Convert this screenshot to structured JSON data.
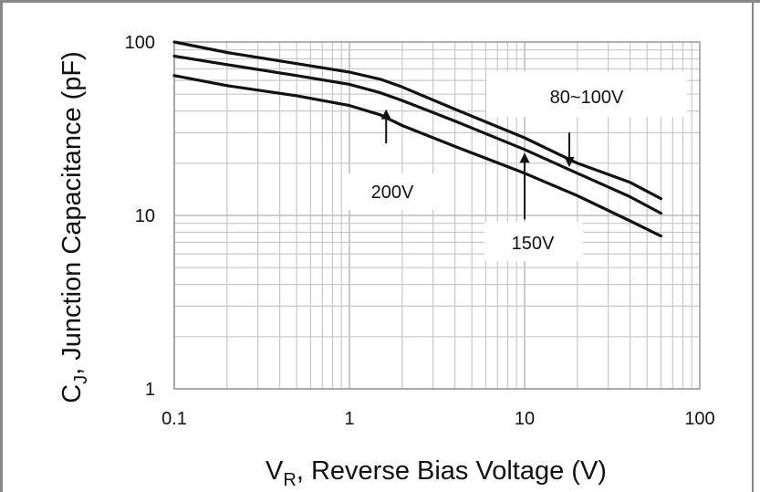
{
  "chart_data": {
    "type": "line",
    "title": "",
    "x_scale": "log",
    "y_scale": "log",
    "xlim": [
      0.1,
      100
    ],
    "ylim": [
      1,
      100
    ],
    "grid": true,
    "x_ticks": [
      {
        "value": 0.1,
        "label": "0.1"
      },
      {
        "value": 1,
        "label": "1"
      },
      {
        "value": 10,
        "label": "10"
      },
      {
        "value": 100,
        "label": "100"
      }
    ],
    "y_ticks": [
      {
        "value": 1,
        "label": "1"
      },
      {
        "value": 10,
        "label": "10"
      },
      {
        "value": 100,
        "label": "100"
      }
    ],
    "xlabel": {
      "main": "V",
      "sub": "R",
      "rest": ", Reverse Bias Voltage (V)"
    },
    "ylabel": {
      "main": "C",
      "sub": "J",
      "rest": ", Junction Capacitance (pF)"
    },
    "series": [
      {
        "name": "80~100V",
        "x": [
          0.1,
          0.2,
          0.5,
          1,
          1.5,
          2,
          4,
          10,
          20,
          40,
          60
        ],
        "y": [
          100,
          87,
          75,
          67,
          61,
          55,
          41,
          28,
          20,
          15.5,
          12.5
        ]
      },
      {
        "name": "150V",
        "x": [
          0.1,
          0.2,
          0.5,
          1,
          1.5,
          2,
          4,
          10,
          20,
          40,
          60
        ],
        "y": [
          83,
          74,
          64,
          57,
          51,
          46,
          35,
          24,
          17.5,
          12.8,
          10.3
        ]
      },
      {
        "name": "200V",
        "x": [
          0.1,
          0.2,
          0.5,
          1,
          1.5,
          2,
          4,
          10,
          20,
          40,
          60
        ],
        "y": [
          64,
          56,
          49,
          43,
          38,
          33,
          25,
          17.5,
          13,
          9.3,
          7.6
        ]
      }
    ],
    "annotations": [
      {
        "text": "80~100V",
        "series": "80~100V",
        "arrow_x": 18,
        "arrow_tip_y": 19,
        "arrow_tail_y": 30
      },
      {
        "text": "150V",
        "series": "150V",
        "arrow_x": 10,
        "arrow_tip_y": 23,
        "arrow_tail_y": 9.5
      },
      {
        "text": "200V",
        "series": "200V",
        "arrow_x": 1.62,
        "arrow_tip_y": 41,
        "arrow_tail_y": 26
      }
    ]
  }
}
